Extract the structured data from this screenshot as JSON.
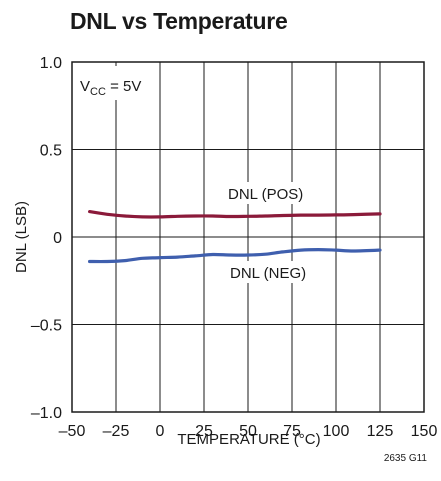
{
  "chart_data": {
    "type": "line",
    "title": "DNL vs Temperature",
    "xlabel": "TEMPERATURE (°C)",
    "ylabel": "DNL (LSB)",
    "xlim": [
      -50,
      150
    ],
    "ylim": [
      -1.0,
      1.0
    ],
    "x_ticks": [
      -50,
      -25,
      0,
      25,
      50,
      75,
      100,
      125,
      150
    ],
    "x_tick_labels": [
      "–50",
      "–25",
      "0",
      "25",
      "50",
      "75",
      "100",
      "125",
      "150"
    ],
    "y_ticks": [
      -1.0,
      -0.5,
      0,
      0.5,
      1.0
    ],
    "y_tick_labels": [
      "–1.0",
      "–0.5",
      "0",
      "0.5",
      "1.0"
    ],
    "grid": true,
    "series": [
      {
        "name": "DNL (POS)",
        "color": "#8b1a3a",
        "x": [
          -40,
          -30,
          -20,
          -10,
          0,
          10,
          20,
          30,
          40,
          50,
          60,
          70,
          80,
          90,
          100,
          110,
          125
        ],
        "values": [
          0.145,
          0.13,
          0.12,
          0.115,
          0.115,
          0.118,
          0.12,
          0.12,
          0.117,
          0.118,
          0.12,
          0.123,
          0.125,
          0.125,
          0.126,
          0.128,
          0.132
        ]
      },
      {
        "name": "DNL (NEG)",
        "color": "#3f5fae",
        "x": [
          -40,
          -30,
          -20,
          -10,
          0,
          10,
          20,
          30,
          40,
          50,
          60,
          70,
          80,
          90,
          100,
          110,
          125
        ],
        "values": [
          -0.14,
          -0.14,
          -0.135,
          -0.122,
          -0.118,
          -0.115,
          -0.108,
          -0.1,
          -0.103,
          -0.103,
          -0.098,
          -0.085,
          -0.075,
          -0.072,
          -0.075,
          -0.08,
          -0.075
        ]
      }
    ],
    "annotations": {
      "vcc_prefix": "V",
      "vcc_sub": "CC",
      "vcc_suffix": " = 5V"
    },
    "figure_id": "2635 G11"
  }
}
